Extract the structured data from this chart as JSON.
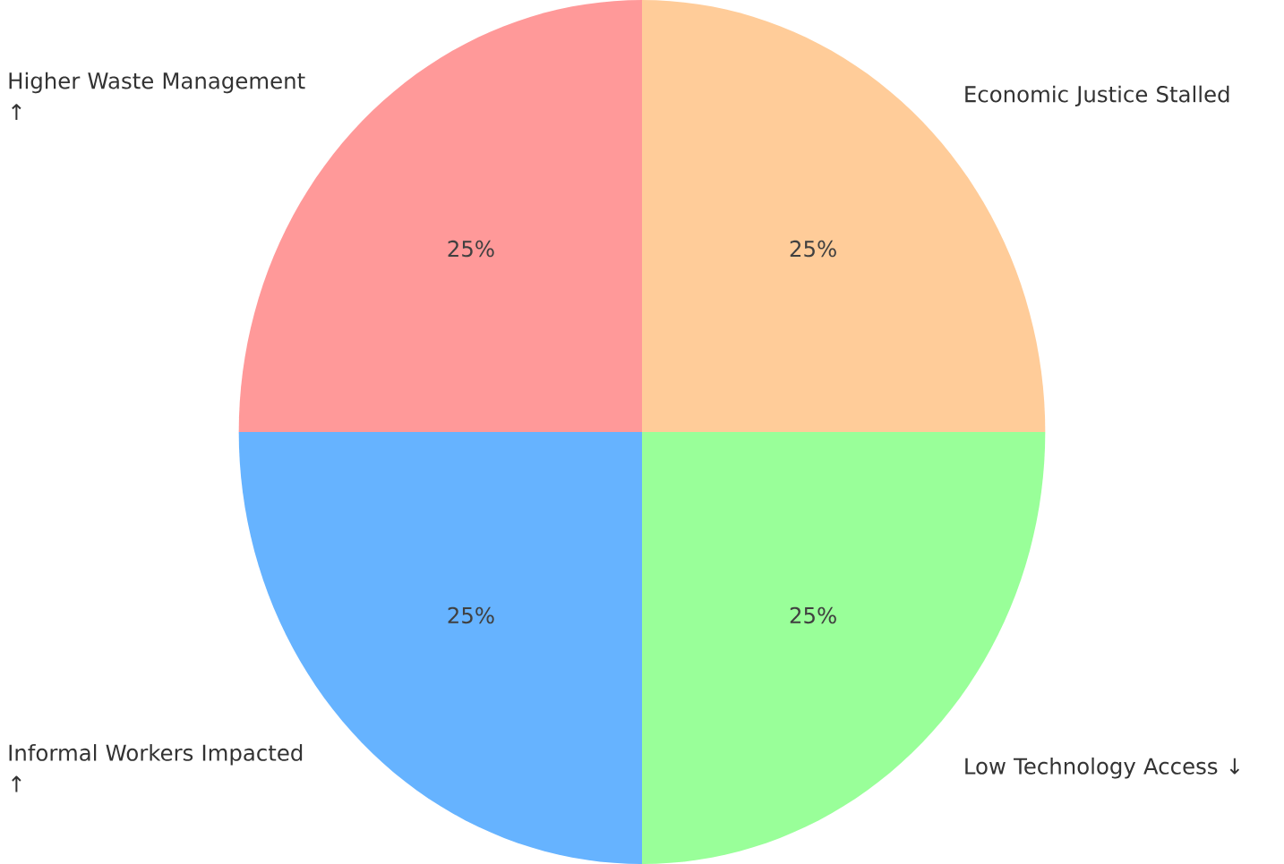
{
  "chart_data": {
    "type": "pie",
    "categories": [
      "Economic Justice Stalled",
      "Higher Waste Management ↑",
      "Informal Workers Impacted ↑",
      "Low Technology Access ↓"
    ],
    "values": [
      25,
      25,
      25,
      25
    ],
    "colors": [
      "#ffcc99",
      "#ff9999",
      "#66b3ff",
      "#99ff99"
    ],
    "value_labels": [
      "25%",
      "25%",
      "25%",
      "25%"
    ]
  }
}
